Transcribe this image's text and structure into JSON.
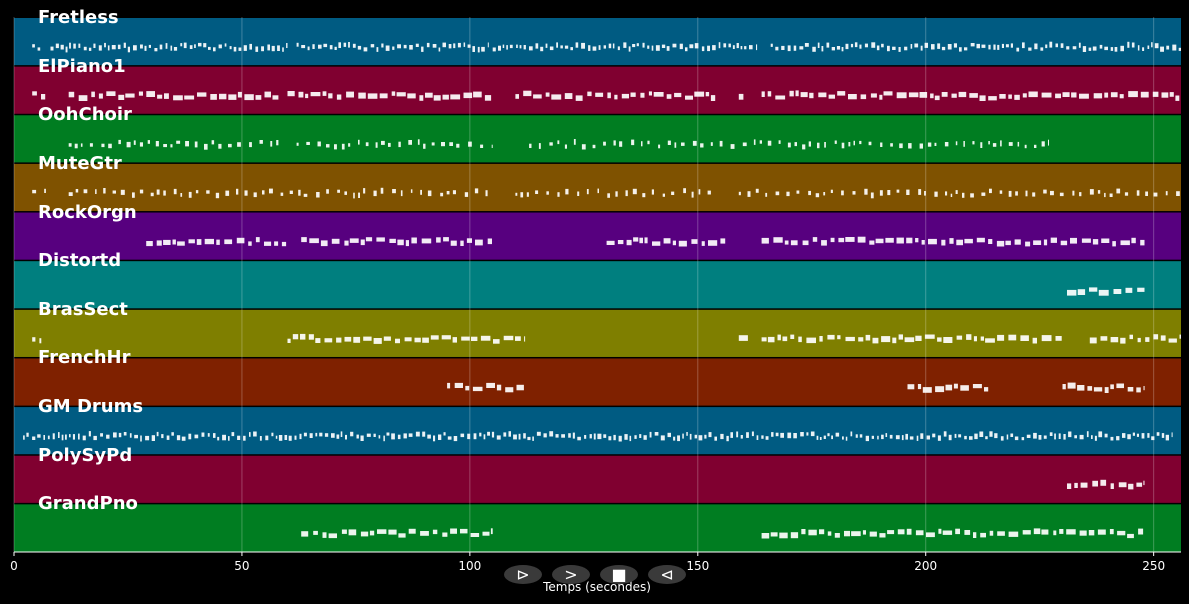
{
  "chart_data": {
    "type": "piano-roll",
    "xlabel": "Temps (secondes)",
    "xlim": [
      0,
      256
    ],
    "xticks": [
      0,
      50,
      100,
      150,
      200,
      250
    ],
    "grid": true,
    "tracks": [
      {
        "name": "Fretless",
        "color": "#005b82",
        "segments": [
          [
            4,
            6
          ],
          [
            8,
            60
          ],
          [
            62,
            104
          ],
          [
            105,
            163
          ],
          [
            166,
            256
          ]
        ],
        "density": "dense",
        "style": "thin"
      },
      {
        "name": "ElPiano1",
        "color": "#800030",
        "segments": [
          [
            4,
            7
          ],
          [
            12,
            58
          ],
          [
            60,
            105
          ],
          [
            110,
            154
          ],
          [
            159,
            160
          ],
          [
            164,
            256
          ]
        ],
        "density": "medium",
        "style": "block"
      },
      {
        "name": "OohChoir",
        "color": "#007d21",
        "segments": [
          [
            12,
            58
          ],
          [
            62,
            105
          ],
          [
            113,
            227
          ]
        ],
        "density": "sparse",
        "style": "thin"
      },
      {
        "name": "MuteGtr",
        "color": "#7f5200",
        "segments": [
          [
            4,
            7
          ],
          [
            12,
            105
          ],
          [
            110,
            154
          ],
          [
            159,
            256
          ]
        ],
        "density": "medium",
        "style": "thin"
      },
      {
        "name": "RockOrgn",
        "color": "#57007f",
        "segments": [
          [
            29,
            60
          ],
          [
            63,
            105
          ],
          [
            130,
            156
          ],
          [
            164,
            248
          ]
        ],
        "density": "medium",
        "style": "block"
      },
      {
        "name": "Distortd",
        "color": "#007f7f",
        "segments": [
          [
            231,
            248
          ]
        ],
        "density": "medium",
        "style": "block"
      },
      {
        "name": "BrasSect",
        "color": "#7f7f00",
        "segments": [
          [
            4,
            6
          ],
          [
            60,
            112
          ],
          [
            159,
            161
          ],
          [
            164,
            230
          ],
          [
            236,
            256
          ]
        ],
        "density": "medium",
        "style": "block"
      },
      {
        "name": "FrenchHr",
        "color": "#7f2100",
        "segments": [
          [
            95,
            112
          ],
          [
            196,
            214
          ],
          [
            230,
            248
          ]
        ],
        "density": "medium",
        "style": "block"
      },
      {
        "name": "GM Drums",
        "color": "#005b82",
        "segments": [
          [
            2,
            254
          ]
        ],
        "density": "dense",
        "style": "thin"
      },
      {
        "name": "PolySyPd",
        "color": "#800030",
        "segments": [
          [
            231,
            248
          ]
        ],
        "density": "medium",
        "style": "block"
      },
      {
        "name": "GrandPno",
        "color": "#007d21",
        "segments": [
          [
            63,
            105
          ],
          [
            164,
            248
          ]
        ],
        "density": "medium",
        "style": "block"
      }
    ]
  },
  "controls": [
    {
      "name": "play-alt-button",
      "glyph": "⊳"
    },
    {
      "name": "play-button",
      "glyph": ">"
    },
    {
      "name": "stop-button",
      "glyph": "■"
    },
    {
      "name": "rewind-button",
      "glyph": "⊲"
    }
  ]
}
